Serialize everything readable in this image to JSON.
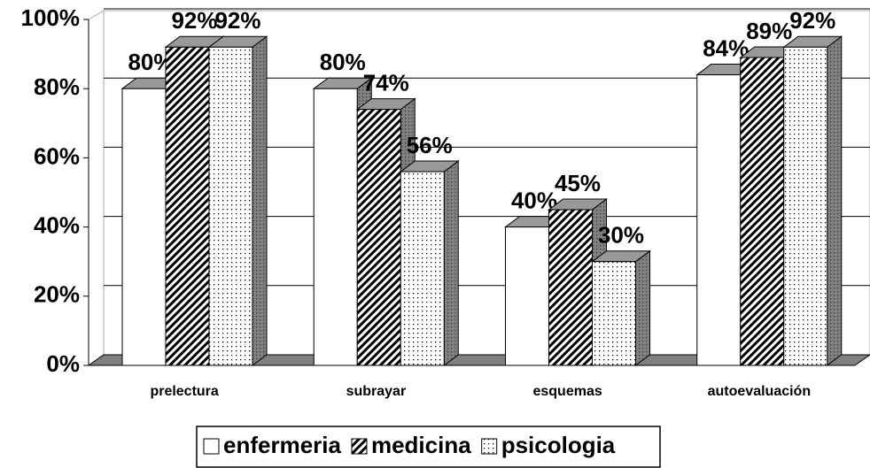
{
  "chart_data": {
    "type": "bar3d",
    "categories": [
      "prelectura",
      "subrayar",
      "esquemas",
      "autoevaluación"
    ],
    "series": [
      {
        "name": "enfermeria",
        "color": "#ffffff",
        "values": [
          80,
          80,
          40,
          84
        ],
        "value_labels": [
          "80%",
          "80%",
          "40%",
          "84%"
        ]
      },
      {
        "name": "medicina",
        "color": "#ffffff",
        "values": [
          92,
          74,
          45,
          89
        ],
        "value_labels": [
          "92%",
          "74%",
          "45%",
          "89%"
        ]
      },
      {
        "name": "psicologia",
        "color": "#ffffff",
        "values": [
          92,
          56,
          30,
          92
        ],
        "value_labels": [
          "92%",
          "56%",
          "30%",
          "92%"
        ]
      }
    ],
    "ylim": [
      0,
      100
    ],
    "yticks": [
      {
        "value": 0,
        "label": "0%"
      },
      {
        "value": 20,
        "label": "20%"
      },
      {
        "value": 40,
        "label": "40%"
      },
      {
        "value": 60,
        "label": "60%"
      },
      {
        "value": 80,
        "label": "80%"
      },
      {
        "value": 100,
        "label": "100%"
      }
    ],
    "grid": true,
    "legend": "bottom"
  }
}
